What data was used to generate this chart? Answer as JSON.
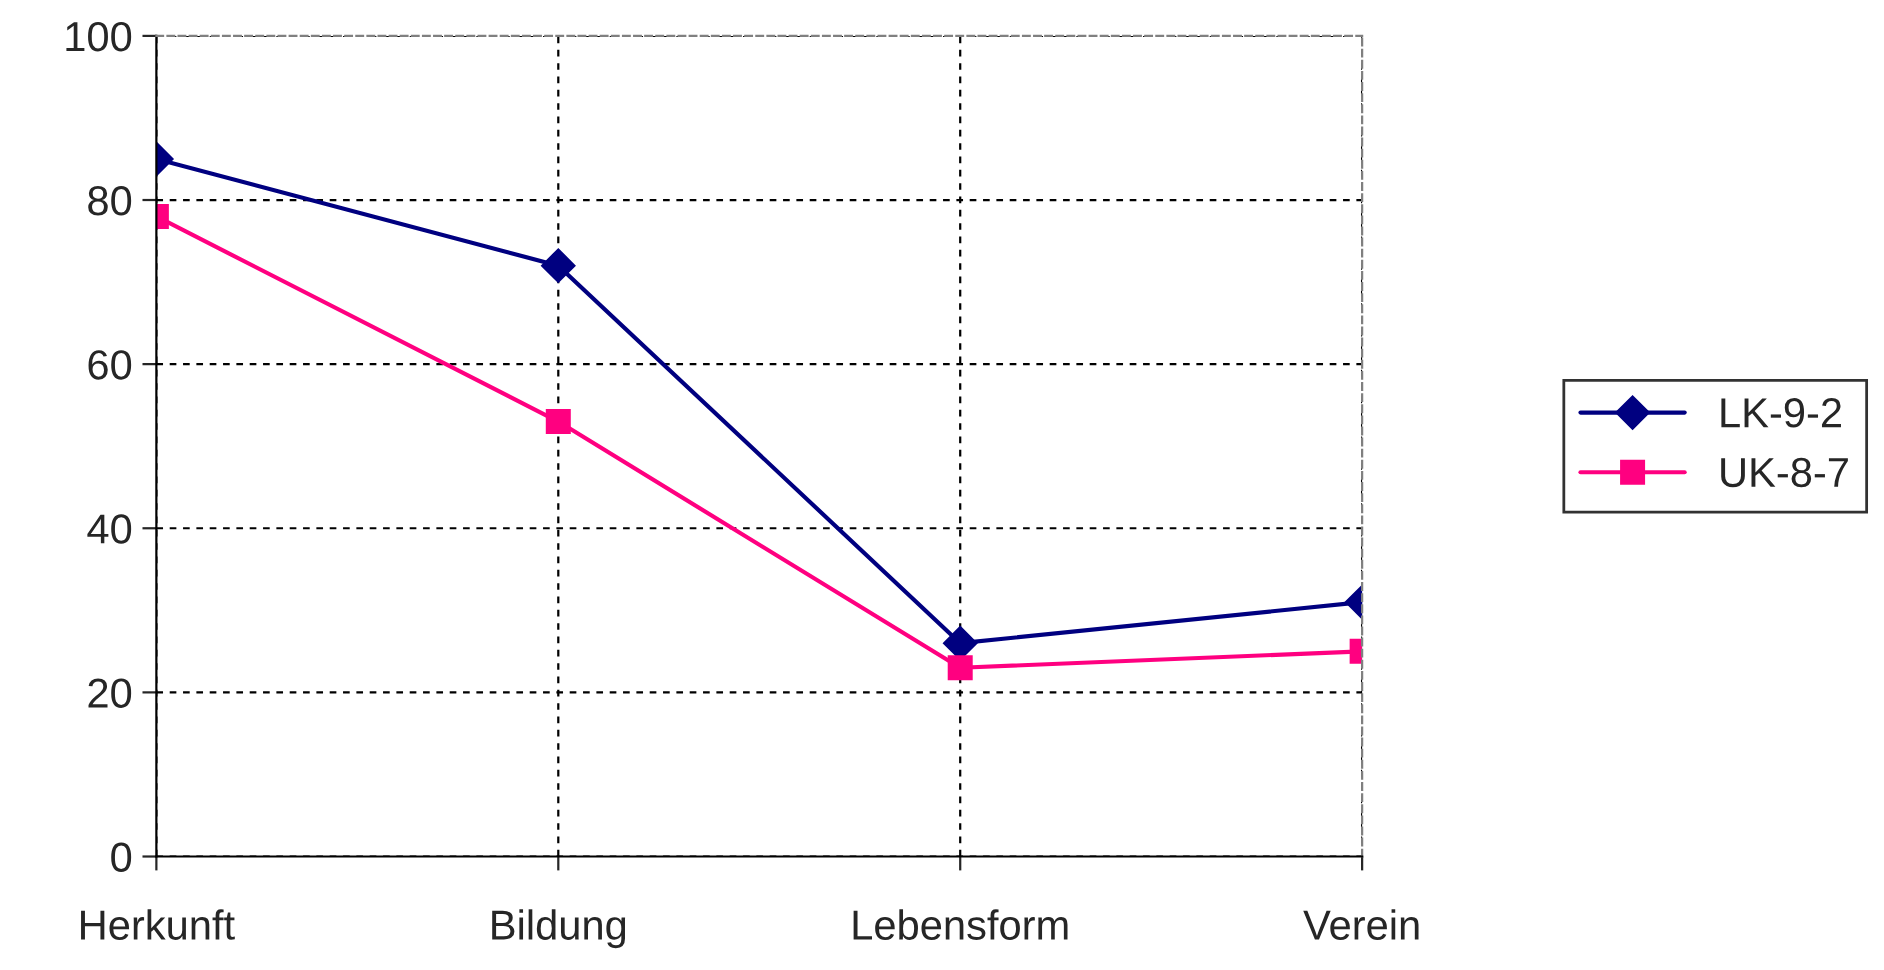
{
  "chart_data": {
    "type": "line",
    "categories": [
      "Herkunft",
      "Bildung",
      "Lebensform",
      "Verein"
    ],
    "series": [
      {
        "name": "LK-9-2",
        "color": "#000080",
        "marker": "diamond",
        "values": [
          85,
          72,
          26,
          31
        ]
      },
      {
        "name": "UK-8-7",
        "color": "#ff0080",
        "marker": "square",
        "values": [
          78,
          53,
          23,
          25
        ]
      }
    ],
    "ylim": [
      0,
      100
    ],
    "yticks": [
      0,
      20,
      40,
      60,
      80,
      100
    ],
    "grid": true,
    "legend": "right",
    "line_style": "solid"
  }
}
